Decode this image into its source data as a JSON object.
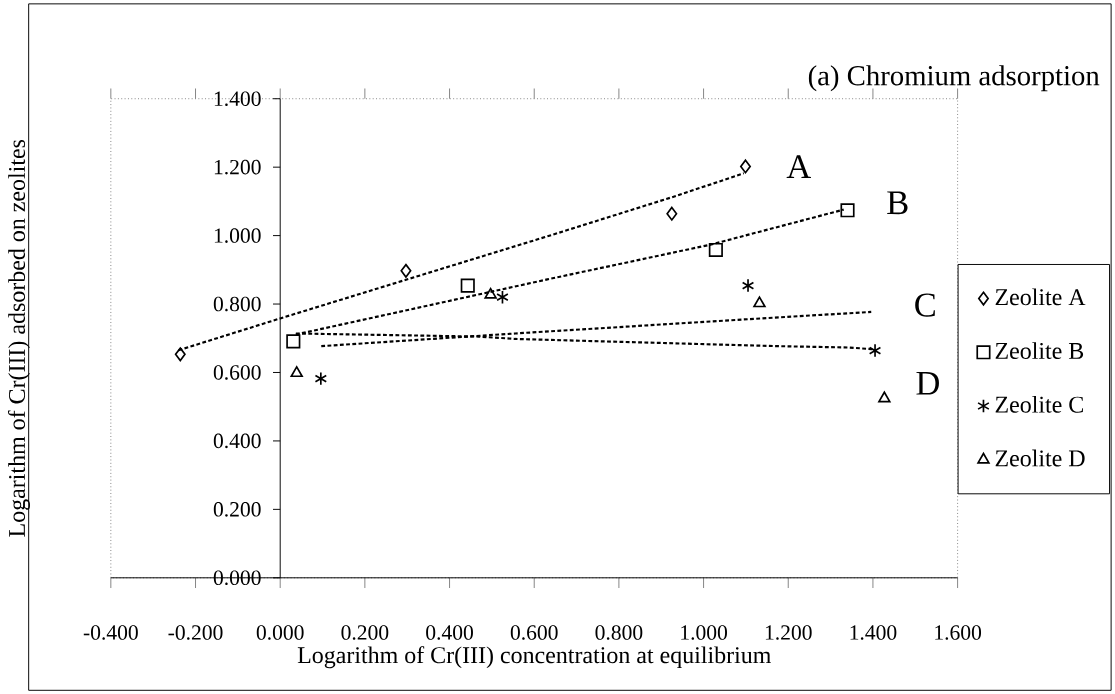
{
  "chart_data": {
    "type": "scatter",
    "title": "(a)  Chromium adsorption",
    "xlabel": "Logarithm of Cr(III) concentration at equilibrium",
    "ylabel": "Logarithm of Cr(III) adsorbed on zeolites",
    "xlim": [
      -0.4,
      1.6
    ],
    "ylim": [
      0,
      1.4
    ],
    "xticks": [
      {
        "value": -0.4,
        "label": "-0.400"
      },
      {
        "value": -0.2,
        "label": "-0.200"
      },
      {
        "value": 0,
        "label": "0.000"
      },
      {
        "value": 0.2,
        "label": "0.200"
      },
      {
        "value": 0.4,
        "label": "0.400"
      },
      {
        "value": 0.6,
        "label": "0.600"
      },
      {
        "value": 0.8,
        "label": "0.800"
      },
      {
        "value": 1.0,
        "label": "1.000"
      },
      {
        "value": 1.2,
        "label": "1.200"
      },
      {
        "value": 1.4,
        "label": "1.400"
      },
      {
        "value": 1.6,
        "label": "1.600"
      }
    ],
    "yticks": [
      {
        "value": 0,
        "label": "0.000"
      },
      {
        "value": 0.2,
        "label": "0.200"
      },
      {
        "value": 0.4,
        "label": "0.400"
      },
      {
        "value": 0.6,
        "label": "0.600"
      },
      {
        "value": 0.8,
        "label": "0.800"
      },
      {
        "value": 1.0,
        "label": "1.000"
      },
      {
        "value": 1.2,
        "label": "1.200"
      },
      {
        "value": 1.4,
        "label": "1.400"
      }
    ],
    "legend": "right",
    "grid": false,
    "series": [
      {
        "name": "Zeolite A",
        "marker": "diamond",
        "color": "#000000",
        "x": [
          -0.236,
          0.297,
          0.925,
          1.099
        ],
        "values": [
          0.653,
          0.897,
          1.064,
          1.202
        ]
      },
      {
        "name": "Zeolite B",
        "marker": "square",
        "color": "#000000",
        "x": [
          0.031,
          0.443,
          1.029,
          1.34
        ],
        "values": [
          0.691,
          0.854,
          0.958,
          1.074
        ]
      },
      {
        "name": "Zeolite C",
        "marker": "cross",
        "color": "#000000",
        "x": [
          0.096,
          0.525,
          1.105,
          1.405
        ],
        "values": [
          0.582,
          0.82,
          0.854,
          0.664
        ]
      },
      {
        "name": "Zeolite D",
        "marker": "triangle",
        "color": "#000000",
        "x": [
          0.039,
          0.497,
          1.132,
          1.427
        ],
        "values": [
          0.598,
          0.827,
          0.802,
          0.524
        ]
      },
      {
        "type": "line",
        "marker": "none",
        "line_style": "dotted",
        "color": "#000000",
        "x": [
          -0.24,
          0.0,
          0.647,
          0.925,
          1.095
        ],
        "values": [
          0.665,
          0.758,
          1.004,
          1.112,
          1.182
        ]
      },
      {
        "type": "line",
        "marker": "none",
        "line_style": "dotted",
        "color": "#000000",
        "x": [
          0.037,
          0.631,
          1.018,
          1.331
        ],
        "values": [
          0.711,
          0.872,
          0.974,
          1.076
        ]
      },
      {
        "type": "line",
        "marker": "none",
        "line_style": "dotted",
        "color": "#000000",
        "x": [
          0.097,
          0.555,
          1.095,
          1.396
        ],
        "values": [
          0.677,
          0.714,
          0.755,
          0.777
        ]
      },
      {
        "type": "line",
        "marker": "none",
        "line_style": "dotted",
        "color": "#000000",
        "x": [
          0.037,
          0.469,
          0.555,
          1.173,
          1.343,
          1.4
        ],
        "values": [
          0.714,
          0.705,
          0.698,
          0.677,
          0.673,
          0.668
        ]
      }
    ],
    "annotations": [
      "A",
      "B",
      "C",
      "D"
    ]
  }
}
